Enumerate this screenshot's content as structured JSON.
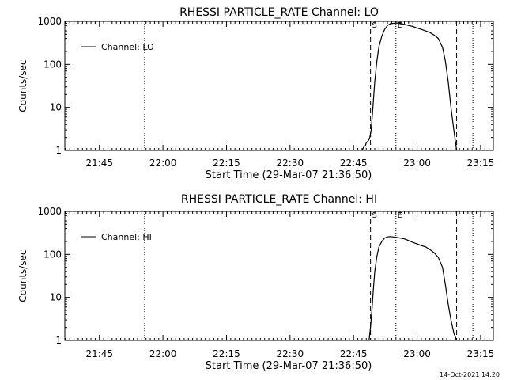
{
  "timestamp": "14-Oct-2021 14:20",
  "chart_data": [
    {
      "type": "line",
      "title": "RHESSI PARTICLE_RATE Channel: LO",
      "xlabel": "Start Time (29-Mar-07 21:36:50)",
      "ylabel": "Counts/sec",
      "yscale": "log",
      "ylim": [
        1,
        1000
      ],
      "xlim": [
        "21:36:50",
        "23:18:00"
      ],
      "x_ticks": [
        "21:45",
        "22:00",
        "22:15",
        "22:30",
        "22:45",
        "23:00",
        "23:15"
      ],
      "y_ticks": [
        "1",
        "10",
        "100",
        "1000"
      ],
      "legend": {
        "position": "top-left"
      },
      "markers": [
        {
          "time": "21:55:40",
          "style": "dotted",
          "label": ""
        },
        {
          "time": "22:49:00",
          "style": "dashed",
          "label": "S"
        },
        {
          "time": "22:55:00",
          "style": "dotted",
          "label": "E"
        },
        {
          "time": "23:09:20",
          "style": "dashed",
          "label": ""
        },
        {
          "time": "23:13:10",
          "style": "dotted",
          "label": ""
        }
      ],
      "series": [
        {
          "name": "Channel: LO",
          "x": [
            "22:47:00",
            "22:47:30",
            "22:47:45",
            "22:48:00",
            "22:48:30",
            "22:48:50",
            "22:49:10",
            "22:49:30",
            "22:50:00",
            "22:50:30",
            "22:51:00",
            "22:51:40",
            "22:52:20",
            "22:53:00",
            "22:53:40",
            "22:54:20",
            "22:55:00",
            "22:55:40",
            "22:56:20",
            "22:57:00",
            "22:58:00",
            "22:59:00",
            "23:00:00",
            "23:01:00",
            "23:02:00",
            "23:03:00",
            "23:04:00",
            "23:05:00",
            "23:06:00",
            "23:06:40",
            "23:07:20",
            "23:08:00",
            "23:08:40",
            "23:09:20"
          ],
          "values": [
            1.0,
            1.25,
            1.25,
            1.5,
            1.7,
            2.0,
            3.0,
            8.0,
            40,
            120,
            260,
            450,
            650,
            800,
            880,
            900,
            910,
            920,
            880,
            850,
            800,
            760,
            700,
            650,
            600,
            550,
            480,
            400,
            250,
            120,
            40,
            10,
            3,
            1.0
          ]
        }
      ]
    },
    {
      "type": "line",
      "title": "RHESSI PARTICLE_RATE Channel: HI",
      "xlabel": "Start Time (29-Mar-07 21:36:50)",
      "ylabel": "Counts/sec",
      "yscale": "log",
      "ylim": [
        1,
        1000
      ],
      "xlim": [
        "21:36:50",
        "23:18:00"
      ],
      "x_ticks": [
        "21:45",
        "22:00",
        "22:15",
        "22:30",
        "22:45",
        "23:00",
        "23:15"
      ],
      "y_ticks": [
        "1",
        "10",
        "100",
        "1000"
      ],
      "legend": {
        "position": "top-left"
      },
      "markers": [
        {
          "time": "21:55:40",
          "style": "dotted",
          "label": ""
        },
        {
          "time": "22:49:00",
          "style": "dashed",
          "label": "S"
        },
        {
          "time": "22:55:00",
          "style": "dotted",
          "label": "E"
        },
        {
          "time": "23:09:20",
          "style": "dashed",
          "label": ""
        },
        {
          "time": "23:13:10",
          "style": "dotted",
          "label": ""
        }
      ],
      "series": [
        {
          "name": "Channel: HI",
          "x": [
            "22:48:40",
            "22:49:00",
            "22:49:20",
            "22:49:40",
            "22:50:00",
            "22:50:30",
            "22:51:00",
            "22:51:40",
            "22:52:20",
            "22:53:00",
            "22:53:40",
            "22:54:20",
            "22:55:00",
            "22:56:00",
            "22:57:00",
            "22:58:00",
            "22:59:00",
            "23:00:00",
            "23:01:00",
            "23:02:00",
            "23:03:00",
            "23:04:00",
            "23:05:00",
            "23:06:00",
            "23:06:40",
            "23:07:20",
            "23:08:00",
            "23:08:40",
            "23:09:20"
          ],
          "values": [
            1.0,
            2.0,
            5.0,
            15,
            40,
            90,
            150,
            200,
            240,
            255,
            260,
            255,
            250,
            240,
            230,
            210,
            190,
            175,
            160,
            150,
            130,
            110,
            85,
            50,
            20,
            7,
            3,
            1.5,
            1.0
          ]
        }
      ]
    }
  ]
}
